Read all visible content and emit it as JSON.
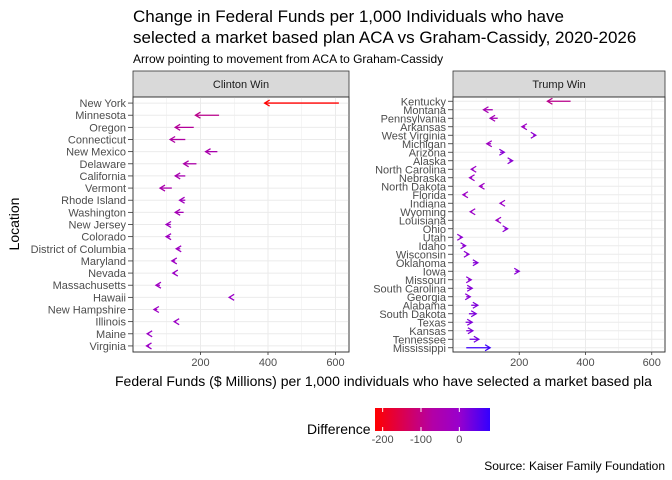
{
  "chart_data": {
    "type": "arrow",
    "title_line1": "Change in Federal Funds per 1,000 Individuals who have",
    "title_line2": "selected a market based plan ACA vs Graham-Cassidy, 2020-2026",
    "subtitle": "Arrow pointing to movement from ACA to Graham-Cassidy",
    "xlabel": "Federal Funds ($ Millions) per 1,000 individuals who have selected a market based pla",
    "ylabel": "Location",
    "caption": "Source: Kaiser Family Foundation",
    "xlim": [
      0,
      640
    ],
    "xticks": [
      200,
      400,
      600
    ],
    "legend": {
      "title": "Difference",
      "ticks": [
        -200,
        -100,
        0
      ],
      "range": [
        -220,
        80
      ],
      "colors": {
        "low": "#ff0000",
        "mid": "#9900cc",
        "high": "#3300ff"
      }
    },
    "panels": [
      {
        "label": "Clinton Win",
        "rows": [
          {
            "state": "New York",
            "aca": 610,
            "gc": 390
          },
          {
            "state": "Minnesota",
            "aca": 255,
            "gc": 185
          },
          {
            "state": "Oregon",
            "aca": 180,
            "gc": 125
          },
          {
            "state": "Connecticut",
            "aca": 155,
            "gc": 110
          },
          {
            "state": "New Mexico",
            "aca": 250,
            "gc": 215
          },
          {
            "state": "Delaware",
            "aca": 188,
            "gc": 150
          },
          {
            "state": "California",
            "aca": 155,
            "gc": 125
          },
          {
            "state": "Vermont",
            "aca": 115,
            "gc": 80
          },
          {
            "state": "Rhode Island",
            "aca": 155,
            "gc": 138
          },
          {
            "state": "Washington",
            "aca": 150,
            "gc": 125
          },
          {
            "state": "New Jersey",
            "aca": 112,
            "gc": 98
          },
          {
            "state": "Colorado",
            "aca": 110,
            "gc": 98
          },
          {
            "state": "District of Columbia",
            "aca": 140,
            "gc": 128
          },
          {
            "state": "Maryland",
            "aca": 125,
            "gc": 115
          },
          {
            "state": "Nevada",
            "aca": 125,
            "gc": 118
          },
          {
            "state": "Massachusetts",
            "aca": 80,
            "gc": 68
          },
          {
            "state": "Hawaii",
            "aca": 290,
            "gc": 285
          },
          {
            "state": "New Hampshire",
            "aca": 72,
            "gc": 62
          },
          {
            "state": "Illinois",
            "aca": 128,
            "gc": 122
          },
          {
            "state": "Maine",
            "aca": 48,
            "gc": 42
          },
          {
            "state": "Virginia",
            "aca": 48,
            "gc": 40
          }
        ]
      },
      {
        "label": "Trump Win",
        "rows": [
          {
            "state": "Kentucky",
            "aca": 355,
            "gc": 285
          },
          {
            "state": "Montana",
            "aca": 120,
            "gc": 92
          },
          {
            "state": "Pennsylvania",
            "aca": 135,
            "gc": 112
          },
          {
            "state": "Arkansas",
            "aca": 218,
            "gc": 208
          },
          {
            "state": "West Virginia",
            "aca": 242,
            "gc": 250
          },
          {
            "state": "Michigan",
            "aca": 115,
            "gc": 102
          },
          {
            "state": "Arizona",
            "aca": 142,
            "gc": 155
          },
          {
            "state": "Alaska",
            "aca": 170,
            "gc": 180
          },
          {
            "state": "North Carolina",
            "aca": 62,
            "gc": 55
          },
          {
            "state": "Nebraska",
            "aca": 58,
            "gc": 50
          },
          {
            "state": "North Dakota",
            "aca": 90,
            "gc": 80
          },
          {
            "state": "Florida",
            "aca": 38,
            "gc": 30
          },
          {
            "state": "Indiana",
            "aca": 148,
            "gc": 142
          },
          {
            "state": "Wyoming",
            "aca": 58,
            "gc": 52
          },
          {
            "state": "Louisiana",
            "aca": 138,
            "gc": 130
          },
          {
            "state": "Ohio",
            "aca": 155,
            "gc": 165
          },
          {
            "state": "Utah",
            "aca": 20,
            "gc": 28
          },
          {
            "state": "Idaho",
            "aca": 28,
            "gc": 38
          },
          {
            "state": "Wisconsin",
            "aca": 40,
            "gc": 48
          },
          {
            "state": "Oklahoma",
            "aca": 60,
            "gc": 75
          },
          {
            "state": "Iowa",
            "aca": 188,
            "gc": 200
          },
          {
            "state": "Missouri",
            "aca": 45,
            "gc": 55
          },
          {
            "state": "South Carolina",
            "aca": 42,
            "gc": 58
          },
          {
            "state": "Georgia",
            "aca": 40,
            "gc": 52
          },
          {
            "state": "Alabama",
            "aca": 55,
            "gc": 75
          },
          {
            "state": "South Dakota",
            "aca": 48,
            "gc": 70
          },
          {
            "state": "Texas",
            "aca": 38,
            "gc": 58
          },
          {
            "state": "Kansas",
            "aca": 40,
            "gc": 60
          },
          {
            "state": "Tennessee",
            "aca": 50,
            "gc": 78
          },
          {
            "state": "Mississippi",
            "aca": 40,
            "gc": 112
          }
        ]
      }
    ]
  }
}
